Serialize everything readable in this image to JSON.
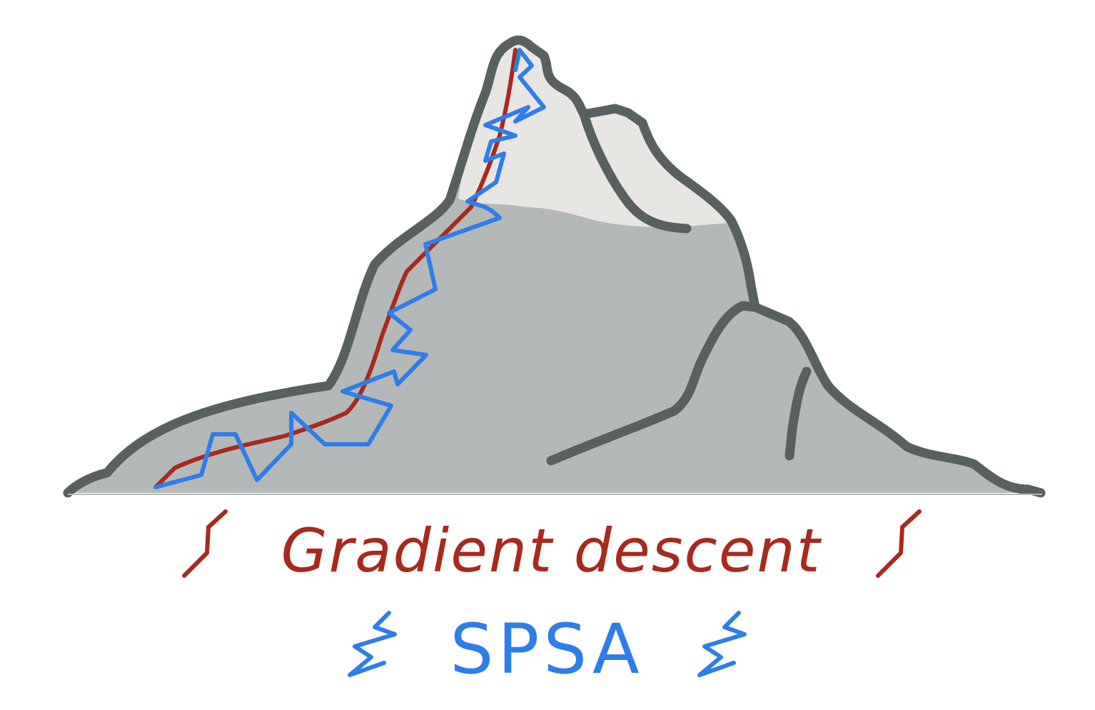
{
  "legend": {
    "gradient_descent": {
      "label": "Gradient descent",
      "color": "#a8291f",
      "icon": "smooth-step-icon"
    },
    "spsa": {
      "label": "SPSA",
      "color": "#2f7de8",
      "icon": "zigzag-icon"
    }
  },
  "mountain": {
    "outline_color": "#586060",
    "rock_color": "#b5b8b9",
    "snow_color": "#e8e6e3"
  }
}
